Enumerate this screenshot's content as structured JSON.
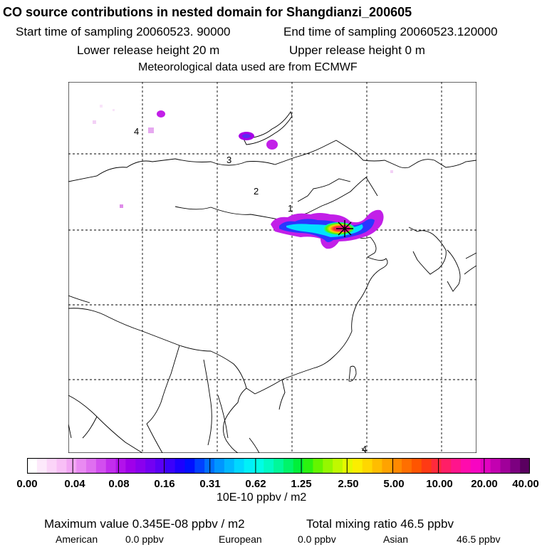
{
  "header": {
    "title": "CO  source contributions in nested domain for Shangdianzi_200605",
    "start_time": "Start time of sampling 20060523. 90000",
    "end_time": "End time of sampling 20060523.120000",
    "lower_release": "Lower release height   20 m",
    "upper_release": "Upper release height    0 m",
    "met_data": "Meteorological data used are from ECMWF"
  },
  "map": {
    "grid_labels": [
      "4",
      "3",
      "2",
      "1",
      "4"
    ],
    "receptor_marker": "receptor-asterisk"
  },
  "colorbar": {
    "tick_labels": [
      "0.00",
      "0.04",
      "0.08",
      "0.16",
      "0.31",
      "0.62",
      "1.25",
      "2.50",
      "5.00",
      "10.00",
      "20.00",
      "40.00"
    ],
    "colors": [
      "#ffffff",
      "#fde9fb",
      "#fbd4f8",
      "#f8bff6",
      "#f2a6f4",
      "#e98af2",
      "#df6ff0",
      "#d24eef",
      "#c22ded",
      "#b212eb",
      "#9f00ea",
      "#8a00ee",
      "#7300f3",
      "#5a00f7",
      "#3b00fb",
      "#1d00ff",
      "#0010ff",
      "#0040ff",
      "#0070ff",
      "#0096ff",
      "#00b8ff",
      "#00d8ff",
      "#00f0f8",
      "#00fde6",
      "#00fbc4",
      "#00f89a",
      "#00f46a",
      "#00f03a",
      "#2cf210",
      "#64f500",
      "#95f700",
      "#c0f800",
      "#e4f900",
      "#fbee00",
      "#ffd700",
      "#ffbd00",
      "#ffa300",
      "#ff8900",
      "#ff6f00",
      "#ff5500",
      "#ff3a14",
      "#ff2a3c",
      "#ff1e66",
      "#ff148c",
      "#ff0bad",
      "#f705c2",
      "#e103c0",
      "#c301b1",
      "#a0009a",
      "#7c0080",
      "#5a0060"
    ],
    "unit": "10E-10 ppbv / m2"
  },
  "summary": {
    "max_value": "Maximum value  0.345E-08 ppbv / m2",
    "total_mixing": "Total mixing ratio       46.5 ppbv",
    "american_label": "American",
    "american_value": "0.0 ppbv",
    "european_label": "European",
    "european_value": "0.0 ppbv",
    "asian_label": "Asian",
    "asian_value": "46.5 ppbv"
  }
}
